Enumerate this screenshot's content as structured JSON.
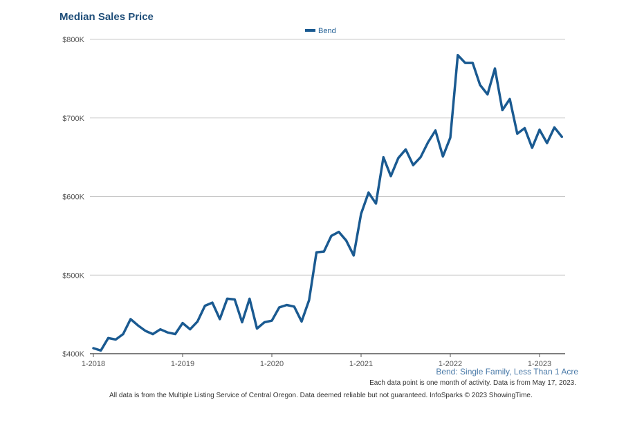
{
  "chart_data": {
    "type": "line",
    "title": "Median Sales Price",
    "legend": {
      "position": "top",
      "label": "Bend"
    },
    "x_ticks": [
      "1-2018",
      "1-2019",
      "1-2020",
      "1-2021",
      "1-2022",
      "1-2023"
    ],
    "y_ticks": [
      "$400K",
      "$500K",
      "$600K",
      "$700K",
      "$800K"
    ],
    "ylim": [
      400000,
      800000
    ],
    "grid": true,
    "series_color": "#1a5a91",
    "series": [
      {
        "name": "Bend",
        "start": "1-2018",
        "values": [
          407000,
          404000,
          420000,
          418000,
          425000,
          444000,
          436000,
          429000,
          425000,
          431000,
          427000,
          425000,
          439000,
          431000,
          441000,
          461000,
          465000,
          444000,
          470000,
          469000,
          440000,
          470000,
          432000,
          440000,
          442000,
          459000,
          462000,
          460000,
          441000,
          468000,
          529000,
          530000,
          550000,
          555000,
          544000,
          525000,
          578000,
          605000,
          591000,
          650000,
          626000,
          649000,
          660000,
          640000,
          650000,
          669000,
          684000,
          651000,
          675000,
          780000,
          770000,
          770000,
          742000,
          730000,
          763000,
          710000,
          724000,
          680000,
          687000,
          662000,
          685000,
          668000,
          688000,
          676000
        ]
      }
    ]
  },
  "series_caption": "Bend: Single Family, Less Than 1 Acre",
  "note": "Each data point is one month of activity. Data is from May 17, 2023.",
  "source": "All data is from the Multiple Listing Service of Central Oregon. Data deemed reliable but not guaranteed. InfoSparks © 2023 ShowingTime."
}
